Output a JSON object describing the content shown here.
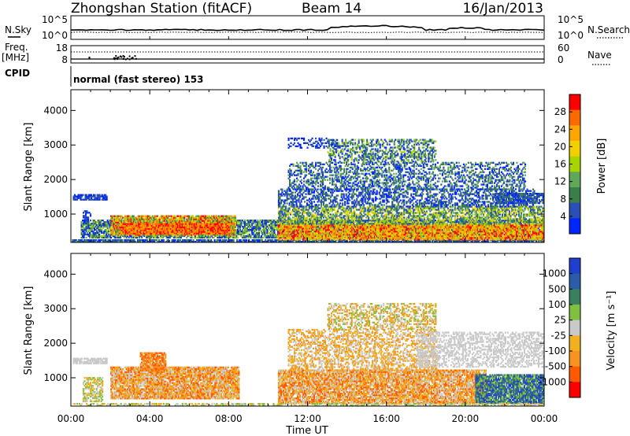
{
  "header": {
    "title": "Zhongshan Station (fitACF)",
    "beam": "Beam 14",
    "date": "16/Jan/2013"
  },
  "top_panels": {
    "nsky_label": "N.Sky",
    "nsky_ticks": [
      "10^5",
      "10^0"
    ],
    "nsearch_label": "N.Search",
    "freq_label_1": "Freq.",
    "freq_label_2": "[MHz]",
    "freq_ticks": [
      "18",
      "8"
    ],
    "nave_ticks": [
      "60",
      "0"
    ],
    "nave_label": "Nave",
    "cpid_label": "CPID",
    "cpid_text": "normal (fast stereo) 153"
  },
  "colors": {
    "power_scale": [
      "#0026ff",
      "#2a50b8",
      "#3a7f4a",
      "#5fa85a",
      "#a8d400",
      "#f2d000",
      "#ffa500",
      "#ff6a00",
      "#ff0000"
    ],
    "velocity_scale": [
      "#1f3fcf",
      "#2a5ca8",
      "#3a8060",
      "#7fc040",
      "#c9c9c9",
      "#f0b020",
      "#f7931e",
      "#ff5a00",
      "#ff0000"
    ]
  },
  "chart_data": [
    {
      "type": "heatmap",
      "panel": "power",
      "ylabel": "Slant Range [km]",
      "y_ticks": [
        "1000",
        "2000",
        "3000",
        "4000"
      ],
      "ylim": [
        180,
        4600
      ],
      "xlim": [
        "00:00",
        "24:00"
      ],
      "colorbar_label": "Power [dB]",
      "colorbar_ticks": [
        "4",
        "8",
        "12",
        "16",
        "20",
        "24",
        "28"
      ],
      "colorbar_range": [
        0,
        30
      ]
    },
    {
      "type": "heatmap",
      "panel": "velocity",
      "ylabel": "Slant Range [km]",
      "y_ticks": [
        "1000",
        "2000",
        "3000",
        "4000"
      ],
      "ylim": [
        180,
        4600
      ],
      "xlabel": "Time UT",
      "x_ticks": [
        "00:00",
        "04:00",
        "08:00",
        "12:00",
        "16:00",
        "20:00",
        "00:00"
      ],
      "colorbar_label": "Velocity [m s⁻¹]",
      "colorbar_ticks": [
        "1000",
        "500",
        "100",
        "25",
        "-25",
        "-100",
        "-500",
        "-1000"
      ]
    }
  ]
}
